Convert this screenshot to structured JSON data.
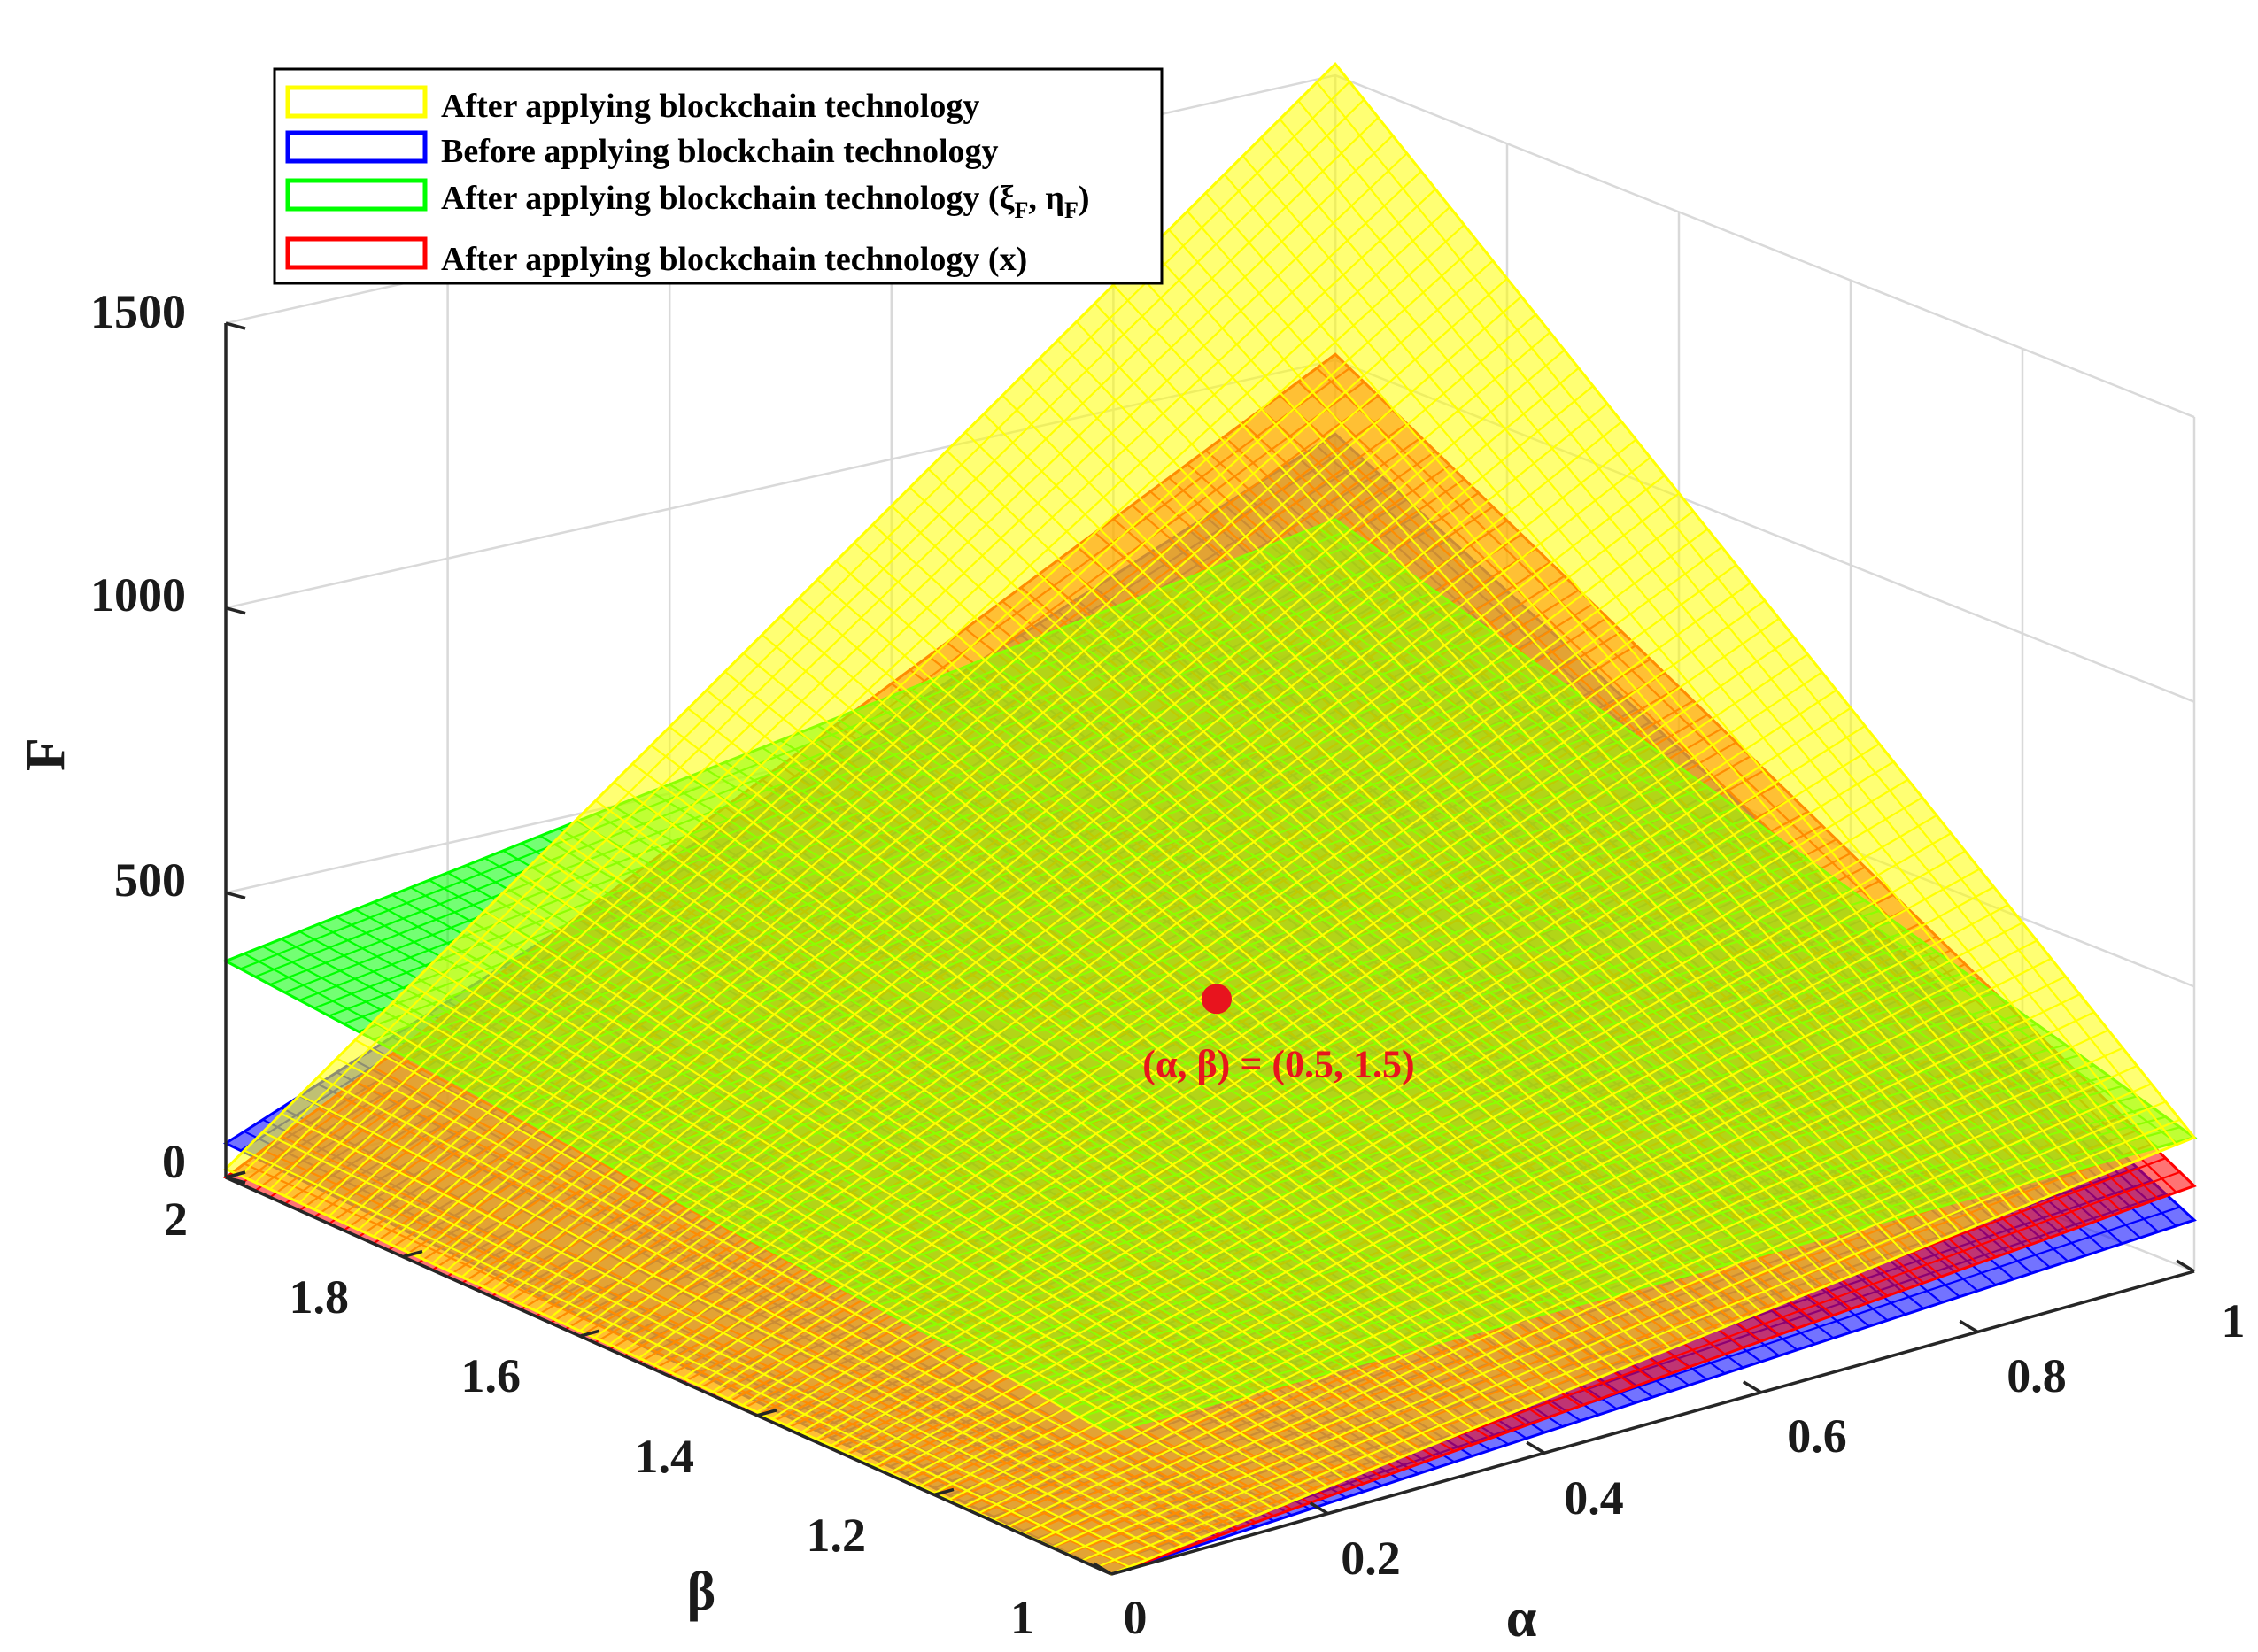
{
  "chart_data": {
    "type": "surface3d",
    "title": "",
    "xlabel": "α",
    "ylabel": "β",
    "zlabel": "F",
    "xlim": [
      0,
      1
    ],
    "ylim": [
      1,
      2
    ],
    "zlim": [
      0,
      1500
    ],
    "x_ticks": [
      "0",
      "0.2",
      "0.4",
      "0.6",
      "0.8",
      "1"
    ],
    "y_ticks": [
      "1",
      "1.2",
      "1.4",
      "1.6",
      "1.8",
      "2"
    ],
    "z_ticks": [
      "0",
      "500",
      "1000",
      "1500"
    ],
    "grid": true,
    "legend_position": "top-left",
    "series": [
      {
        "name": "After applying blockchain technology",
        "color": "#ffff00",
        "corners": {
          "a0_b1": 0,
          "a1_b1": 235,
          "a0_b2": 15,
          "a1_b2": 1520
        }
      },
      {
        "name": "Before applying blockchain technology",
        "color": "#0000ff",
        "corners": {
          "a0_b1": 0,
          "a1_b1": 90,
          "a0_b2": 60,
          "a1_b2": 870
        }
      },
      {
        "name_main": "After applying blockchain technology (ξ",
        "name_sub1": "F",
        "name_mid": ", η",
        "name_sub2": "F",
        "name_end": ")",
        "color": "#00ff00",
        "corners": {
          "a0_b1": 250,
          "a1_b1": 235,
          "a0_b2": 380,
          "a1_b2": 720
        }
      },
      {
        "name": "After applying blockchain technology (x)",
        "color": "#ff0000",
        "corners": {
          "a0_b1": 0,
          "a1_b1": 150,
          "a0_b2": 0,
          "a1_b2": 1010
        }
      }
    ],
    "annotations": [
      {
        "text": "(α, β) = (0.5, 1.5)",
        "alpha": 0.5,
        "beta": 1.5,
        "value": 420,
        "color": "#e8141e"
      }
    ]
  }
}
